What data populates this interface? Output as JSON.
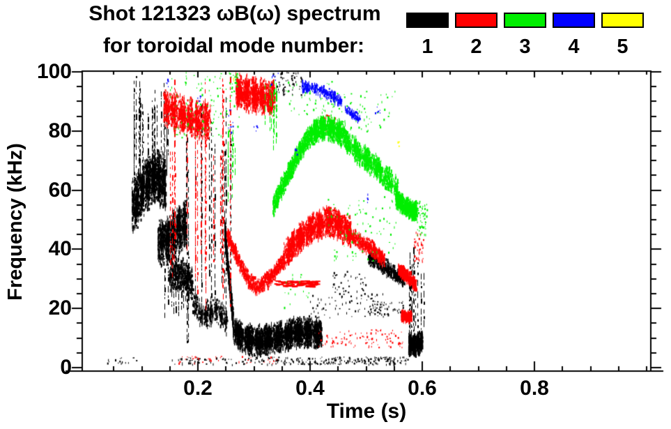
{
  "chart_data": {
    "type": "scatter",
    "title_line1": "Shot 121323 ωB(ω) spectrum",
    "title_line2": "for toroidal mode number:",
    "xlabel": "Time (s)",
    "ylabel": "Frequency (kHz)",
    "xlim": [
      0,
      1.01
    ],
    "ylim": [
      0,
      100
    ],
    "grid": false,
    "legend_position": "top-right",
    "axis": {
      "xticks": [
        {
          "v": 0.2,
          "label": "0.2"
        },
        {
          "v": 0.4,
          "label": "0.4"
        },
        {
          "v": 0.6,
          "label": "0.6"
        },
        {
          "v": 0.8,
          "label": "0.8"
        }
      ],
      "yticks": [
        {
          "v": 0,
          "label": "0"
        },
        {
          "v": 20,
          "label": "20"
        },
        {
          "v": 40,
          "label": "40"
        },
        {
          "v": 60,
          "label": "60"
        },
        {
          "v": 80,
          "label": "80"
        },
        {
          "v": 100,
          "label": "100"
        }
      ],
      "xminor_step": 0.05,
      "yminor_step": 5
    },
    "legend": [
      {
        "label": "1",
        "color": "#000000"
      },
      {
        "label": "2",
        "color": "#ff0000"
      },
      {
        "label": "3",
        "color": "#00ee00"
      },
      {
        "label": "4",
        "color": "#0000ff"
      },
      {
        "label": "5",
        "color": "#ffff00"
      }
    ],
    "series": [
      {
        "name": "toroidal mode n=1",
        "color": "#000000",
        "clusters": [
          {
            "style": "dots",
            "t": [
              0.036,
              0.09
            ],
            "f": [
              1.5,
              3.5
            ],
            "n": 16
          },
          {
            "style": "blob",
            "path": [
              [
                0.082,
                54
              ],
              [
                0.1,
                60
              ],
              [
                0.125,
                65
              ],
              [
                0.142,
                62
              ]
            ],
            "spread": 10,
            "n": 2300,
            "lumps": 6
          },
          {
            "style": "streaks",
            "t": [
              0.085,
              0.148
            ],
            "f": [
              58,
              99
            ],
            "lines": 22
          },
          {
            "style": "blob",
            "path": [
              [
                0.128,
                42
              ],
              [
                0.152,
                44
              ],
              [
                0.178,
                49
              ]
            ],
            "spread": 9,
            "n": 1500,
            "lumps": 5
          },
          {
            "style": "blob",
            "path": [
              [
                0.148,
                30
              ],
              [
                0.168,
                32
              ],
              [
                0.19,
                28
              ]
            ],
            "spread": 6,
            "n": 450
          },
          {
            "style": "streaks",
            "t": [
              0.14,
              0.19
            ],
            "f": [
              16,
              42
            ],
            "lines": 14
          },
          {
            "style": "streaks",
            "t": [
              0.178,
              0.262
            ],
            "f": [
              8,
              98
            ],
            "lines": 13
          },
          {
            "style": "blob",
            "path": [
              [
                0.19,
                22
              ],
              [
                0.21,
                17
              ],
              [
                0.232,
                20
              ],
              [
                0.252,
                15
              ]
            ],
            "spread": 5,
            "n": 550,
            "lumps": 7
          },
          {
            "style": "blob",
            "path": [
              [
                0.247,
                47
              ],
              [
                0.254,
                32
              ],
              [
                0.262,
                16
              ]
            ],
            "spread": 4,
            "n": 600
          },
          {
            "style": "blob",
            "path": [
              [
                0.262,
                13
              ],
              [
                0.28,
                9.5
              ],
              [
                0.31,
                9
              ],
              [
                0.34,
                10
              ],
              [
                0.37,
                11.5
              ],
              [
                0.4,
                12
              ],
              [
                0.42,
                11
              ]
            ],
            "spread": 5.5,
            "n": 4200,
            "lumps": 9
          },
          {
            "style": "dots",
            "t": [
              0.15,
              0.3
            ],
            "f": [
              1.2,
              3.6
            ],
            "n": 55
          },
          {
            "style": "dots",
            "t": [
              0.3,
              0.575
            ],
            "f": [
              1.2,
              3.8
            ],
            "n": 230
          },
          {
            "style": "dots",
            "t": [
              0.4,
              0.53
            ],
            "f": [
              17,
              26
            ],
            "n": 80
          },
          {
            "style": "dots",
            "t": [
              0.44,
              0.5
            ],
            "f": [
              26,
              33
            ],
            "n": 36
          },
          {
            "style": "blob",
            "path": [
              [
                0.503,
                37
              ],
              [
                0.53,
                34.5
              ],
              [
                0.552,
                31.5
              ],
              [
                0.568,
                29.5
              ]
            ],
            "spread": 3,
            "n": 420
          },
          {
            "style": "dots",
            "t": [
              0.505,
              0.565
            ],
            "f": [
              18,
              22.5
            ],
            "n": 55
          },
          {
            "style": "streaks",
            "t": [
              0.575,
              0.602
            ],
            "f": [
              2,
              41
            ],
            "lines": 10
          },
          {
            "style": "blob",
            "path": [
              [
                0.575,
                8
              ],
              [
                0.588,
                7.5
              ],
              [
                0.6,
                9
              ]
            ],
            "spread": 4,
            "n": 900,
            "lumps": 4
          },
          {
            "style": "dots",
            "t": [
              0.332,
              0.385
            ],
            "f": [
              92,
              100
            ],
            "n": 60
          }
        ]
      },
      {
        "name": "toroidal mode n=2",
        "color": "#ff0000",
        "clusters": [
          {
            "style": "blob",
            "path": [
              [
                0.138,
                88
              ],
              [
                0.165,
                86
              ],
              [
                0.195,
                84
              ],
              [
                0.222,
                83
              ]
            ],
            "spread": 7,
            "n": 1500,
            "lumps": 6
          },
          {
            "style": "streaks",
            "t": [
              0.148,
              0.262
            ],
            "f": [
              12,
              99
            ],
            "lines": 16
          },
          {
            "style": "blob",
            "path": [
              [
                0.267,
                93
              ],
              [
                0.3,
                92
              ],
              [
                0.337,
                91
              ]
            ],
            "spread": 6.5,
            "n": 1700,
            "lumps": 5
          },
          {
            "style": "blob",
            "path": [
              [
                0.251,
                45
              ],
              [
                0.272,
                36
              ],
              [
                0.292,
                29
              ],
              [
                0.307,
                27
              ],
              [
                0.328,
                30.5
              ],
              [
                0.352,
                36
              ]
            ],
            "spread": 3,
            "n": 800
          },
          {
            "style": "blob",
            "path": [
              [
                0.352,
                37
              ],
              [
                0.376,
                43
              ],
              [
                0.4,
                47
              ],
              [
                0.428,
                49.5
              ],
              [
                0.452,
                48
              ],
              [
                0.472,
                45.5
              ]
            ],
            "spread": 5.5,
            "n": 2500,
            "lumps": 7
          },
          {
            "style": "blob",
            "path": [
              [
                0.472,
                45
              ],
              [
                0.492,
                42
              ],
              [
                0.512,
                40
              ],
              [
                0.532,
                36.5
              ]
            ],
            "spread": 3,
            "n": 420
          },
          {
            "style": "hdash",
            "t": [
              0.335,
              0.41
            ],
            "f": [
              27.5,
              29.5
            ],
            "n": 90
          },
          {
            "style": "dots",
            "t": [
              0.41,
              0.565
            ],
            "f": [
              7,
              13
            ],
            "n": 95
          },
          {
            "style": "blob",
            "path": [
              [
                0.557,
                33
              ],
              [
                0.572,
                31
              ],
              [
                0.589,
                27.5
              ]
            ],
            "spread": 2.5,
            "n": 420
          },
          {
            "style": "blob",
            "path": [
              [
                0.562,
                17.5
              ],
              [
                0.58,
                17
              ]
            ],
            "spread": 2.2,
            "n": 230
          },
          {
            "style": "dots",
            "t": [
              0.585,
              0.602
            ],
            "f": [
              36,
              46
            ],
            "n": 45
          },
          {
            "style": "dots",
            "t": [
              0.418,
              0.447
            ],
            "f": [
              80,
              86
            ],
            "n": 26
          },
          {
            "style": "dots",
            "t": [
              0.165,
              0.34
            ],
            "f": [
              1.5,
              4
            ],
            "n": 34
          }
        ]
      },
      {
        "name": "toroidal mode n=3",
        "color": "#00ee00",
        "clusters": [
          {
            "style": "dots",
            "t": [
              0.148,
              0.275
            ],
            "f": [
              78,
              100
            ],
            "n": 110
          },
          {
            "style": "streaks",
            "t": [
              0.252,
              0.268
            ],
            "f": [
              55,
              82
            ],
            "lines": 5
          },
          {
            "style": "streaks",
            "t": [
              0.318,
              0.34
            ],
            "f": [
              72,
              100
            ],
            "lines": 7
          },
          {
            "style": "blob",
            "path": [
              [
                0.333,
                54
              ],
              [
                0.352,
                62
              ],
              [
                0.37,
                69
              ],
              [
                0.39,
                76
              ],
              [
                0.405,
                79.5
              ]
            ],
            "spread": 4,
            "n": 900
          },
          {
            "style": "blob",
            "path": [
              [
                0.405,
                80
              ],
              [
                0.428,
                81
              ],
              [
                0.448,
                80
              ],
              [
                0.462,
                78
              ]
            ],
            "spread": 4.5,
            "n": 1200,
            "lumps": 4
          },
          {
            "style": "blob",
            "path": [
              [
                0.462,
                77
              ],
              [
                0.49,
                72
              ],
              [
                0.515,
                68
              ],
              [
                0.54,
                63.5
              ],
              [
                0.556,
                60
              ]
            ],
            "spread": 4.5,
            "n": 1400,
            "lumps": 5
          },
          {
            "style": "blob",
            "path": [
              [
                0.552,
                57
              ],
              [
                0.566,
                55
              ],
              [
                0.58,
                53
              ],
              [
                0.59,
                53
              ]
            ],
            "spread": 3.5,
            "n": 750
          },
          {
            "style": "dots",
            "t": [
              0.355,
              0.45
            ],
            "f": [
              85,
              97
            ],
            "n": 60
          },
          {
            "style": "dots",
            "t": [
              0.45,
              0.555
            ],
            "f": [
              80,
              94
            ],
            "n": 55
          },
          {
            "style": "dots",
            "t": [
              0.43,
              0.557
            ],
            "f": [
              36,
              58
            ],
            "n": 90
          },
          {
            "style": "dots",
            "t": [
              0.59,
              0.608
            ],
            "f": [
              45,
              57
            ],
            "n": 55
          },
          {
            "style": "dots",
            "t": [
              0.255,
              0.27
            ],
            "f": [
              94,
              100
            ],
            "n": 20
          },
          {
            "style": "dots",
            "t": [
              0.352,
              0.4
            ],
            "f": [
              20,
              33
            ],
            "n": 18
          }
        ]
      },
      {
        "name": "toroidal mode n=4",
        "color": "#0000ff",
        "clusters": [
          {
            "style": "dots",
            "t": [
              0.143,
              0.148
            ],
            "f": [
              95,
              98
            ],
            "n": 5
          },
          {
            "style": "dots",
            "t": [
              0.198,
              0.204
            ],
            "f": [
              89,
              92
            ],
            "n": 5
          },
          {
            "style": "dots",
            "t": [
              0.254,
              0.262
            ],
            "f": [
              75,
              88
            ],
            "n": 8
          },
          {
            "style": "dots",
            "t": [
              0.298,
              0.306
            ],
            "f": [
              80,
              84
            ],
            "n": 5
          },
          {
            "style": "blob",
            "path": [
              [
                0.385,
                95
              ],
              [
                0.41,
                94.5
              ],
              [
                0.435,
                92
              ],
              [
                0.457,
                89.5
              ]
            ],
            "spread": 2.2,
            "n": 220
          },
          {
            "style": "blob",
            "path": [
              [
                0.462,
                87.5
              ],
              [
                0.476,
                85.5
              ],
              [
                0.488,
                84
              ]
            ],
            "spread": 1.6,
            "n": 70
          },
          {
            "style": "dots",
            "t": [
              0.515,
              0.525
            ],
            "f": [
              86,
              88.5
            ],
            "n": 6
          },
          {
            "style": "dots",
            "t": [
              0.37,
              0.376
            ],
            "f": [
              72,
              75
            ],
            "n": 4
          },
          {
            "style": "dots",
            "t": [
              0.497,
              0.503
            ],
            "f": [
              56,
              59
            ],
            "n": 4
          },
          {
            "style": "dots",
            "t": [
              0.33,
              0.345
            ],
            "f": [
              96,
              100
            ],
            "n": 8
          }
        ]
      },
      {
        "name": "toroidal mode n=5",
        "color": "#ffff00",
        "clusters": [
          {
            "style": "dots",
            "t": [
              0.262,
              0.266
            ],
            "f": [
              96.5,
              99
            ],
            "n": 4
          },
          {
            "style": "dots",
            "t": [
              0.554,
              0.558
            ],
            "f": [
              75,
              77
            ],
            "n": 3
          }
        ]
      }
    ]
  }
}
